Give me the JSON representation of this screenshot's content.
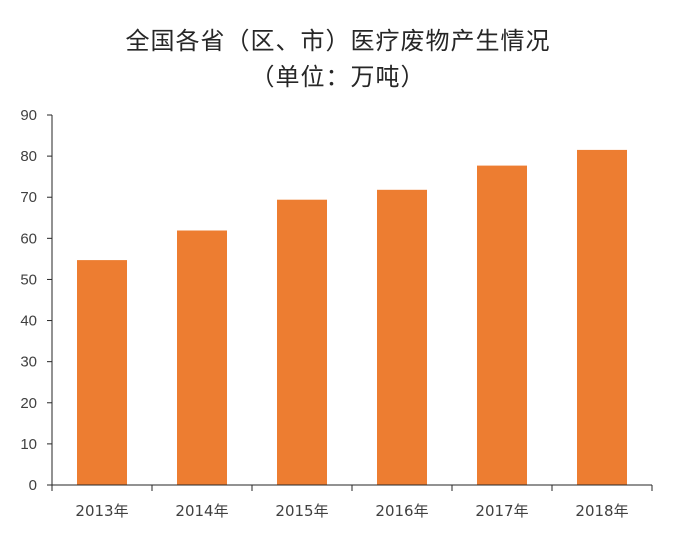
{
  "chart_data": {
    "type": "bar",
    "title": "全国各省（区、市）医疗废物产生情况",
    "subtitle": "（单位：万吨）",
    "categories": [
      "2013年",
      "2014年",
      "2015年",
      "2016年",
      "2017年",
      "2018年"
    ],
    "values": [
      54.7,
      61.9,
      69.4,
      71.8,
      77.7,
      81.5
    ],
    "ylim": [
      0,
      90
    ],
    "yticks": [
      0,
      10,
      20,
      30,
      40,
      50,
      60,
      70,
      80,
      90
    ],
    "grid": false,
    "bar_color": "#ED7D31",
    "axis_color": "#262626"
  }
}
